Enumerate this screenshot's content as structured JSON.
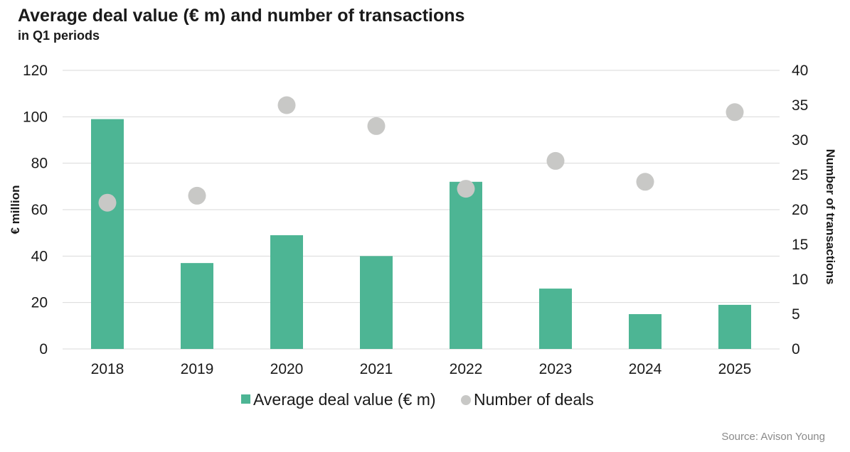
{
  "chart_data": {
    "type": "bar",
    "title": "Average deal value (€ m) and number of transactions",
    "subtitle": "in Q1 periods",
    "categories": [
      "2018",
      "2019",
      "2020",
      "2021",
      "2022",
      "2023",
      "2024",
      "2025"
    ],
    "series": [
      {
        "name": "Average deal value (€ m)",
        "type": "bar",
        "axis": "left",
        "color": "#4db594",
        "values": [
          99,
          37,
          49,
          40,
          72,
          26,
          15,
          19
        ]
      },
      {
        "name": "Number of deals",
        "type": "scatter",
        "axis": "right",
        "color": "#c8c8c6",
        "values": [
          21,
          22,
          35,
          32,
          23,
          27,
          24,
          34
        ]
      }
    ],
    "ylabel": "€ million",
    "ylim": [
      0,
      120
    ],
    "yticks": [
      "0",
      "20",
      "40",
      "60",
      "80",
      "100",
      "120"
    ],
    "y2label": "Number of transactions",
    "y2lim": [
      0,
      40
    ],
    "y2ticks": [
      "0",
      "5",
      "10",
      "15",
      "20",
      "25",
      "30",
      "35",
      "40"
    ],
    "grid": true,
    "legend": "bottom-center",
    "source": "Source: Avison Young"
  }
}
